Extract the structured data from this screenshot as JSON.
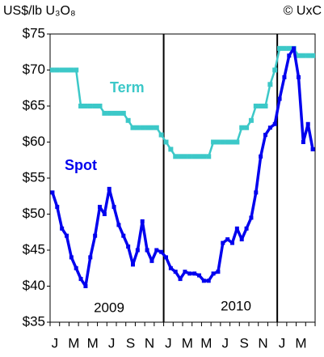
{
  "chart_data": {
    "type": "line",
    "axis_label": "US$/lb U₃O₈",
    "source": "© UxC",
    "year_labels": [
      "2009",
      "2010"
    ],
    "categories": [
      "J",
      null,
      null,
      null,
      "M",
      null,
      null,
      null,
      "M",
      null,
      null,
      null,
      "J",
      null,
      null,
      null,
      "S",
      null,
      null,
      null,
      "N",
      null,
      null,
      null,
      "J",
      null,
      null,
      null,
      "M",
      null,
      null,
      null,
      "M",
      null,
      null,
      null,
      "J",
      null,
      null,
      null,
      "S",
      null,
      null,
      null,
      "N",
      null,
      null,
      null,
      "J",
      null,
      null,
      null,
      "M",
      null,
      null,
      null
    ],
    "series": [
      {
        "name": "Term",
        "color": "#3cc8c8",
        "values": [
          70,
          70,
          70,
          70,
          70,
          70,
          65,
          65,
          65,
          65,
          65,
          64,
          64,
          64,
          64,
          64,
          63,
          62,
          62,
          62,
          62,
          62,
          62,
          61,
          60,
          59,
          58,
          58,
          58,
          58,
          58,
          58,
          58,
          58,
          60,
          60,
          60,
          60,
          60,
          60,
          62,
          62,
          63,
          65,
          65,
          65,
          68,
          70,
          73,
          73,
          73,
          73,
          72,
          72,
          72,
          72
        ]
      },
      {
        "name": "Spot",
        "color": "#0000ee",
        "values": [
          53,
          51,
          48,
          47,
          44,
          42.5,
          41,
          40,
          44,
          47,
          51,
          50,
          53.5,
          51,
          48.5,
          47,
          45.5,
          43,
          45,
          49,
          45,
          43.5,
          45,
          44.75,
          44,
          42.5,
          42,
          41,
          42,
          41.75,
          41.75,
          41.5,
          40.75,
          40.75,
          41.75,
          42,
          46,
          46.5,
          46,
          48,
          46.5,
          48,
          49.5,
          53,
          58,
          61,
          62,
          62.5,
          66,
          69,
          72,
          73,
          69,
          60,
          62.5,
          59
        ]
      }
    ],
    "ylim": [
      35,
      75
    ],
    "yticks": [
      {
        "value": 35,
        "label": "$35"
      },
      {
        "value": 40,
        "label": "$40"
      },
      {
        "value": 45,
        "label": "$45"
      },
      {
        "value": 50,
        "label": "$50"
      },
      {
        "value": 55,
        "label": "$55"
      },
      {
        "value": 60,
        "label": "$60"
      },
      {
        "value": 65,
        "label": "$65"
      },
      {
        "value": 70,
        "label": "$70"
      },
      {
        "value": 75,
        "label": "$75"
      }
    ]
  }
}
